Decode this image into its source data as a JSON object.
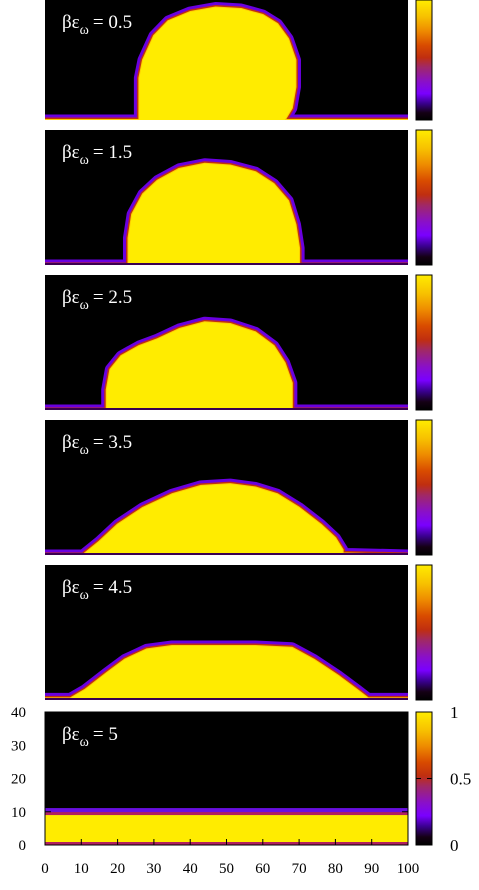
{
  "chart_data": {
    "type": "heatmap",
    "description_note": "",
    "x_ticks": [
      0,
      10,
      20,
      30,
      40,
      50,
      60,
      70,
      80,
      90,
      100
    ],
    "y_ticks": [
      0,
      10,
      20,
      30,
      40
    ],
    "xlim": [
      0,
      100
    ],
    "ylim": [
      0,
      40
    ],
    "colorbar": {
      "range": [
        0,
        1
      ],
      "ticks": [
        "0",
        "0.5",
        "1"
      ],
      "palette": "black-purple-red-yellow"
    },
    "panel_label_prefix": "βε",
    "panel_label_subscript": "ω",
    "panels": [
      {
        "label_value": "= 0.5",
        "profile": [
          [
            0,
            0
          ],
          [
            26,
            0
          ],
          [
            26,
            6
          ],
          [
            26,
            14
          ],
          [
            27,
            20
          ],
          [
            30,
            28
          ],
          [
            34,
            33
          ],
          [
            40,
            36
          ],
          [
            47,
            37.5
          ],
          [
            54,
            37
          ],
          [
            60,
            35
          ],
          [
            64,
            32
          ],
          [
            67,
            27
          ],
          [
            69,
            20
          ],
          [
            69,
            11
          ],
          [
            68,
            4
          ],
          [
            66,
            0
          ],
          [
            100,
            0
          ]
        ],
        "show_floor": false
      },
      {
        "label_value": "= 1.5",
        "profile": [
          [
            0,
            0
          ],
          [
            23,
            0
          ],
          [
            23,
            8
          ],
          [
            24,
            15
          ],
          [
            27,
            21
          ],
          [
            31,
            25
          ],
          [
            37,
            28.5
          ],
          [
            44,
            30
          ],
          [
            51,
            29.5
          ],
          [
            58,
            27.5
          ],
          [
            63,
            24
          ],
          [
            67,
            19
          ],
          [
            69,
            12
          ],
          [
            70,
            5
          ],
          [
            70,
            0
          ],
          [
            100,
            0
          ]
        ],
        "show_floor": true
      },
      {
        "label_value": "= 2.5",
        "profile": [
          [
            0,
            0
          ],
          [
            17,
            0
          ],
          [
            17,
            6
          ],
          [
            18,
            12
          ],
          [
            21,
            16
          ],
          [
            26,
            19
          ],
          [
            31,
            21
          ],
          [
            37,
            24
          ],
          [
            44,
            26
          ],
          [
            51,
            25.5
          ],
          [
            58,
            23
          ],
          [
            63,
            19
          ],
          [
            66,
            14
          ],
          [
            68,
            8
          ],
          [
            68,
            0
          ],
          [
            100,
            0
          ]
        ],
        "show_floor": true
      },
      {
        "label_value": "= 3.5",
        "profile": [
          [
            0,
            0
          ],
          [
            11,
            0
          ],
          [
            11,
            0.5
          ],
          [
            15,
            4
          ],
          [
            20,
            9
          ],
          [
            27,
            14
          ],
          [
            35,
            18
          ],
          [
            43,
            20.5
          ],
          [
            51,
            21
          ],
          [
            58,
            20
          ],
          [
            64,
            18
          ],
          [
            70,
            14
          ],
          [
            76,
            9
          ],
          [
            80,
            5
          ],
          [
            82,
            1.5
          ],
          [
            82,
            0.5
          ],
          [
            100,
            0
          ]
        ],
        "show_floor": true
      },
      {
        "label_value": "= 4.5",
        "profile": [
          [
            0,
            0
          ],
          [
            0,
            0.5
          ],
          [
            7,
            0.5
          ],
          [
            11,
            3
          ],
          [
            17,
            8
          ],
          [
            22,
            12
          ],
          [
            28,
            15
          ],
          [
            35,
            16
          ],
          [
            46,
            16
          ],
          [
            58,
            16
          ],
          [
            68,
            15.5
          ],
          [
            74,
            12
          ],
          [
            81,
            7
          ],
          [
            86,
            3
          ],
          [
            89,
            0.5
          ],
          [
            100,
            0.5
          ],
          [
            100,
            0
          ]
        ],
        "show_floor": true
      },
      {
        "label_value": "= 5",
        "profile": "flat",
        "film_height": 9,
        "show_floor": true
      }
    ]
  }
}
